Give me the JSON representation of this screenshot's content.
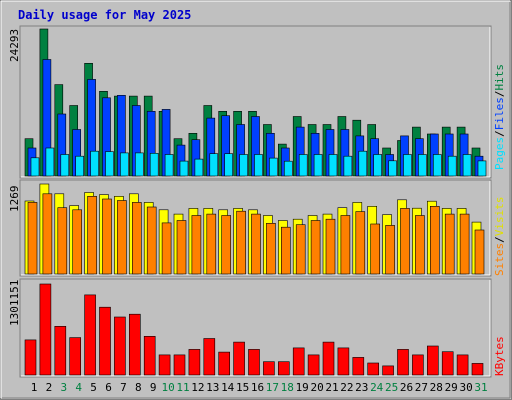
{
  "title": "Daily usage for May 2025",
  "colors": {
    "background": "#c0c0c0",
    "title": "#0000cc",
    "hits": "#008040",
    "files": "#0040ff",
    "pages": "#00e0ff",
    "visits": "#ffff00",
    "sites": "#ff8000",
    "kbytes": "#ff0000",
    "weekend_label": "#008040",
    "weekday_label": "#000000"
  },
  "chart_data": [
    {
      "type": "bar",
      "name": "hits-files-pages",
      "y_max_label": "24293",
      "ylim": [
        0,
        24293
      ],
      "side_label": [
        "Pages",
        "Files",
        "Hits"
      ],
      "categories": [
        "1",
        "2",
        "3",
        "4",
        "5",
        "6",
        "7",
        "8",
        "9",
        "10",
        "11",
        "12",
        "13",
        "14",
        "15",
        "16",
        "17",
        "18",
        "19",
        "20",
        "21",
        "22",
        "23",
        "24",
        "25",
        "26",
        "27",
        "28",
        "29",
        "30",
        "31"
      ],
      "series": [
        {
          "name": "Hits",
          "values": [
            6170,
            24293,
            15106,
            11645,
            18617,
            13992,
            13196,
            13196,
            13196,
            10692,
            6170,
            7056,
            11645,
            10692,
            10692,
            10692,
            8512,
            5270,
            9829,
            8512,
            8512,
            9829,
            9223,
            8512,
            4634,
            5865,
            8074,
            6933,
            8074,
            8074,
            4634
          ]
        },
        {
          "name": "Files",
          "values": [
            4634,
            19245,
            10246,
            7683,
            15962,
            12923,
            13335,
            11645,
            10692,
            11010,
            5111,
            5999,
            9567,
            9966,
            8512,
            9829,
            7056,
            4634,
            8074,
            7056,
            7683,
            7683,
            6629,
            6170,
            3552,
            6629,
            6170,
            6933,
            6933,
            6933,
            3278
          ]
        },
        {
          "name": "Pages",
          "values": [
            3000,
            4634,
            3552,
            3278,
            4105,
            4036,
            3818,
            3818,
            3746,
            3552,
            2462,
            2799,
            3688,
            3688,
            3552,
            3550,
            2951,
            2440,
            3552,
            3552,
            3552,
            3278,
            4105,
            3552,
            2509,
            3552,
            3552,
            3552,
            3278,
            3552,
            2500
          ]
        }
      ]
    },
    {
      "type": "bar",
      "name": "visits-sites",
      "y_max_label": "1269",
      "ylim": [
        0,
        1269
      ],
      "side_label": [
        "Sites",
        "Visits"
      ],
      "categories": [
        "1",
        "2",
        "3",
        "4",
        "5",
        "6",
        "7",
        "8",
        "9",
        "10",
        "11",
        "12",
        "13",
        "14",
        "15",
        "16",
        "17",
        "18",
        "19",
        "20",
        "21",
        "22",
        "23",
        "24",
        "25",
        "26",
        "27",
        "28",
        "29",
        "30",
        "31"
      ],
      "series": [
        {
          "name": "Visits",
          "values": [
            1029,
            1269,
            1131,
            964,
            1149,
            1120,
            1095,
            1131,
            1010,
            905,
            845,
            925,
            925,
            905,
            925,
            905,
            825,
            755,
            772,
            825,
            845,
            935,
            1010,
            955,
            838,
            1046,
            928,
            1027,
            925,
            925,
            732
          ]
        },
        {
          "name": "Sites",
          "values": [
            1010,
            1131,
            935,
            905,
            1095,
            1057,
            1036,
            1010,
            945,
            720,
            755,
            825,
            845,
            825,
            885,
            845,
            715,
            660,
            695,
            755,
            772,
            825,
            880,
            705,
            685,
            925,
            825,
            955,
            845,
            845,
            620
          ]
        }
      ]
    },
    {
      "type": "bar",
      "name": "kbytes",
      "y_max_label": "1301151",
      "ylim": [
        0,
        1301151
      ],
      "side_label": [
        "KBytes"
      ],
      "categories": [
        "1",
        "2",
        "3",
        "4",
        "5",
        "6",
        "7",
        "8",
        "9",
        "10",
        "11",
        "12",
        "13",
        "14",
        "15",
        "16",
        "17",
        "18",
        "19",
        "20",
        "21",
        "22",
        "23",
        "24",
        "25",
        "26",
        "27",
        "28",
        "29",
        "30",
        "31"
      ],
      "series": [
        {
          "name": "KBytes",
          "values": [
            502000,
            1301151,
            696000,
            535000,
            1145000,
            969000,
            829000,
            870000,
            554000,
            287000,
            287000,
            366000,
            522000,
            327000,
            470000,
            366000,
            190000,
            190000,
            387000,
            287000,
            470000,
            387000,
            251000,
            172000,
            130000,
            366000,
            287000,
            414000,
            333000,
            287000,
            166000
          ]
        }
      ]
    }
  ],
  "x_labels": [
    {
      "text": "1",
      "weekend": false
    },
    {
      "text": "2",
      "weekend": false
    },
    {
      "text": "3",
      "weekend": true
    },
    {
      "text": "4",
      "weekend": true
    },
    {
      "text": "5",
      "weekend": false
    },
    {
      "text": "6",
      "weekend": false
    },
    {
      "text": "7",
      "weekend": false
    },
    {
      "text": "8",
      "weekend": false
    },
    {
      "text": "9",
      "weekend": false
    },
    {
      "text": "10",
      "weekend": true
    },
    {
      "text": "11",
      "weekend": true
    },
    {
      "text": "12",
      "weekend": false
    },
    {
      "text": "13",
      "weekend": false
    },
    {
      "text": "14",
      "weekend": false
    },
    {
      "text": "15",
      "weekend": false
    },
    {
      "text": "16",
      "weekend": false
    },
    {
      "text": "17",
      "weekend": true
    },
    {
      "text": "18",
      "weekend": true
    },
    {
      "text": "19",
      "weekend": false
    },
    {
      "text": "20",
      "weekend": false
    },
    {
      "text": "21",
      "weekend": false
    },
    {
      "text": "22",
      "weekend": false
    },
    {
      "text": "23",
      "weekend": false
    },
    {
      "text": "24",
      "weekend": true
    },
    {
      "text": "25",
      "weekend": true
    },
    {
      "text": "26",
      "weekend": false
    },
    {
      "text": "27",
      "weekend": false
    },
    {
      "text": "28",
      "weekend": false
    },
    {
      "text": "29",
      "weekend": false
    },
    {
      "text": "30",
      "weekend": false
    },
    {
      "text": "31",
      "weekend": true
    }
  ]
}
